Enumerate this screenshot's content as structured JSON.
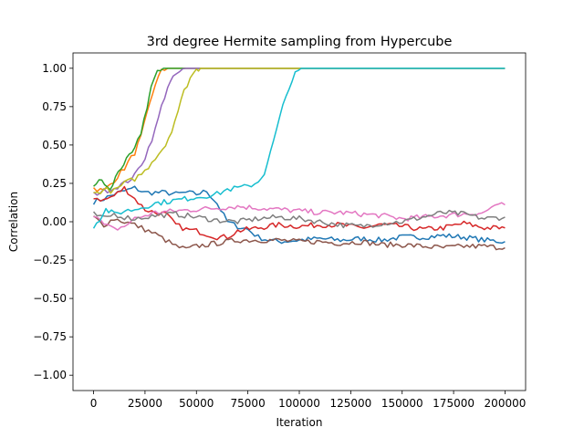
{
  "chart_data": {
    "type": "line",
    "title": "3rd degree Hermite sampling from Hypercube",
    "xlabel": "Iteration",
    "ylabel": "Correlation",
    "xlim": [
      -10000,
      210000
    ],
    "ylim": [
      -1.1,
      1.1
    ],
    "xticks": [
      0,
      25000,
      50000,
      75000,
      100000,
      125000,
      150000,
      175000,
      200000
    ],
    "xtick_labels": [
      "0",
      "25000",
      "50000",
      "75000",
      "100000",
      "125000",
      "150000",
      "175000",
      "200000"
    ],
    "yticks": [
      -1.0,
      -0.75,
      -0.5,
      -0.25,
      0.0,
      0.25,
      0.5,
      0.75,
      1.0
    ],
    "ytick_labels": [
      "−1.00",
      "−0.75",
      "−0.50",
      "−0.25",
      "0.00",
      "0.25",
      "0.50",
      "0.75",
      "1.00"
    ],
    "grid": false,
    "series": [
      {
        "color": "#1f77b4",
        "points": [
          [
            0,
            0.13
          ],
          [
            5000,
            0.15
          ],
          [
            10000,
            0.18
          ],
          [
            15000,
            0.2
          ],
          [
            20000,
            0.22
          ],
          [
            25000,
            0.19
          ],
          [
            30000,
            0.19
          ],
          [
            35000,
            0.19
          ],
          [
            40000,
            0.18
          ],
          [
            45000,
            0.19
          ],
          [
            50000,
            0.18
          ],
          [
            55000,
            0.2
          ],
          [
            60000,
            0.12
          ],
          [
            65000,
            0.0
          ],
          [
            70000,
            -0.03
          ],
          [
            75000,
            -0.05
          ],
          [
            80000,
            -0.1
          ],
          [
            85000,
            -0.12
          ],
          [
            90000,
            -0.13
          ],
          [
            100000,
            -0.12
          ],
          [
            110000,
            -0.11
          ],
          [
            120000,
            -0.12
          ],
          [
            130000,
            -0.11
          ],
          [
            140000,
            -0.12
          ],
          [
            150000,
            -0.1
          ],
          [
            160000,
            -0.1
          ],
          [
            170000,
            -0.09
          ],
          [
            180000,
            -0.1
          ],
          [
            190000,
            -0.12
          ],
          [
            200000,
            -0.13
          ]
        ]
      },
      {
        "color": "#ff7f0e",
        "points": [
          [
            0,
            0.22
          ],
          [
            5000,
            0.2
          ],
          [
            10000,
            0.27
          ],
          [
            15000,
            0.35
          ],
          [
            20000,
            0.45
          ],
          [
            23000,
            0.55
          ],
          [
            26000,
            0.7
          ],
          [
            30000,
            0.9
          ],
          [
            33000,
            0.98
          ],
          [
            36000,
            1.0
          ],
          [
            200000,
            1.0
          ]
        ]
      },
      {
        "color": "#2ca02c",
        "points": [
          [
            0,
            0.24
          ],
          [
            4000,
            0.27
          ],
          [
            8000,
            0.2
          ],
          [
            12000,
            0.33
          ],
          [
            16000,
            0.4
          ],
          [
            20000,
            0.47
          ],
          [
            23000,
            0.58
          ],
          [
            26000,
            0.75
          ],
          [
            28000,
            0.88
          ],
          [
            31000,
            0.97
          ],
          [
            34000,
            1.0
          ],
          [
            200000,
            1.0
          ]
        ]
      },
      {
        "color": "#d62728",
        "points": [
          [
            0,
            0.16
          ],
          [
            5000,
            0.14
          ],
          [
            10000,
            0.17
          ],
          [
            15000,
            0.22
          ],
          [
            20000,
            0.15
          ],
          [
            25000,
            0.08
          ],
          [
            30000,
            0.06
          ],
          [
            35000,
            0.05
          ],
          [
            40000,
            -0.02
          ],
          [
            45000,
            -0.05
          ],
          [
            50000,
            -0.06
          ],
          [
            55000,
            -0.08
          ],
          [
            60000,
            -0.1
          ],
          [
            65000,
            -0.1
          ],
          [
            70000,
            -0.06
          ],
          [
            80000,
            -0.04
          ],
          [
            90000,
            -0.02
          ],
          [
            100000,
            -0.03
          ],
          [
            110000,
            -0.02
          ],
          [
            120000,
            -0.02
          ],
          [
            130000,
            -0.04
          ],
          [
            140000,
            -0.02
          ],
          [
            150000,
            -0.03
          ],
          [
            160000,
            -0.05
          ],
          [
            170000,
            -0.04
          ],
          [
            180000,
            -0.01
          ],
          [
            190000,
            -0.04
          ],
          [
            200000,
            -0.04
          ]
        ]
      },
      {
        "color": "#9467bd",
        "points": [
          [
            0,
            0.18
          ],
          [
            5000,
            0.2
          ],
          [
            10000,
            0.22
          ],
          [
            15000,
            0.25
          ],
          [
            20000,
            0.3
          ],
          [
            25000,
            0.42
          ],
          [
            30000,
            0.6
          ],
          [
            33000,
            0.75
          ],
          [
            36000,
            0.88
          ],
          [
            40000,
            0.96
          ],
          [
            45000,
            1.0
          ],
          [
            200000,
            1.0
          ]
        ]
      },
      {
        "color": "#8c564b",
        "points": [
          [
            0,
            0.03
          ],
          [
            5000,
            -0.02
          ],
          [
            10000,
            0.02
          ],
          [
            15000,
            0.0
          ],
          [
            20000,
            -0.02
          ],
          [
            25000,
            -0.05
          ],
          [
            30000,
            -0.08
          ],
          [
            35000,
            -0.12
          ],
          [
            40000,
            -0.16
          ],
          [
            45000,
            -0.18
          ],
          [
            50000,
            -0.16
          ],
          [
            60000,
            -0.14
          ],
          [
            70000,
            -0.12
          ],
          [
            80000,
            -0.12
          ],
          [
            90000,
            -0.12
          ],
          [
            100000,
            -0.13
          ],
          [
            110000,
            -0.13
          ],
          [
            120000,
            -0.14
          ],
          [
            130000,
            -0.13
          ],
          [
            140000,
            -0.15
          ],
          [
            150000,
            -0.15
          ],
          [
            160000,
            -0.16
          ],
          [
            170000,
            -0.17
          ],
          [
            180000,
            -0.16
          ],
          [
            190000,
            -0.16
          ],
          [
            200000,
            -0.17
          ]
        ]
      },
      {
        "color": "#e377c2",
        "points": [
          [
            0,
            0.05
          ],
          [
            5000,
            -0.02
          ],
          [
            10000,
            -0.05
          ],
          [
            15000,
            -0.03
          ],
          [
            20000,
            0.02
          ],
          [
            25000,
            0.04
          ],
          [
            30000,
            0.06
          ],
          [
            40000,
            0.07
          ],
          [
            50000,
            0.08
          ],
          [
            60000,
            0.09
          ],
          [
            70000,
            0.1
          ],
          [
            80000,
            0.09
          ],
          [
            90000,
            0.08
          ],
          [
            100000,
            0.07
          ],
          [
            110000,
            0.06
          ],
          [
            120000,
            0.06
          ],
          [
            130000,
            0.05
          ],
          [
            140000,
            0.04
          ],
          [
            150000,
            0.02
          ],
          [
            160000,
            0.03
          ],
          [
            170000,
            0.04
          ],
          [
            180000,
            0.05
          ],
          [
            190000,
            0.06
          ],
          [
            195000,
            0.11
          ],
          [
            200000,
            0.11
          ]
        ]
      },
      {
        "color": "#7f7f7f",
        "points": [
          [
            0,
            0.05
          ],
          [
            5000,
            0.02
          ],
          [
            10000,
            0.05
          ],
          [
            15000,
            0.03
          ],
          [
            20000,
            0.02
          ],
          [
            25000,
            0.03
          ],
          [
            30000,
            0.04
          ],
          [
            40000,
            0.05
          ],
          [
            50000,
            0.03
          ],
          [
            60000,
            0.01
          ],
          [
            70000,
            0.0
          ],
          [
            80000,
            0.02
          ],
          [
            90000,
            0.03
          ],
          [
            100000,
            0.02
          ],
          [
            110000,
            0.0
          ],
          [
            120000,
            -0.02
          ],
          [
            130000,
            -0.03
          ],
          [
            140000,
            -0.01
          ],
          [
            150000,
            0.0
          ],
          [
            160000,
            0.03
          ],
          [
            170000,
            0.06
          ],
          [
            180000,
            0.05
          ],
          [
            190000,
            0.02
          ],
          [
            200000,
            0.03
          ]
        ]
      },
      {
        "color": "#bcbd22",
        "points": [
          [
            0,
            0.18
          ],
          [
            5000,
            0.21
          ],
          [
            10000,
            0.2
          ],
          [
            15000,
            0.25
          ],
          [
            20000,
            0.28
          ],
          [
            25000,
            0.33
          ],
          [
            30000,
            0.42
          ],
          [
            35000,
            0.5
          ],
          [
            38000,
            0.6
          ],
          [
            41000,
            0.72
          ],
          [
            44000,
            0.85
          ],
          [
            47000,
            0.94
          ],
          [
            50000,
            0.99
          ],
          [
            52000,
            1.0
          ],
          [
            200000,
            1.0
          ]
        ]
      },
      {
        "color": "#17becf",
        "points": [
          [
            0,
            -0.03
          ],
          [
            3000,
            0.02
          ],
          [
            6000,
            0.08
          ],
          [
            10000,
            0.05
          ],
          [
            15000,
            0.07
          ],
          [
            20000,
            0.08
          ],
          [
            25000,
            0.1
          ],
          [
            30000,
            0.12
          ],
          [
            40000,
            0.14
          ],
          [
            50000,
            0.16
          ],
          [
            55000,
            0.17
          ],
          [
            60000,
            0.18
          ],
          [
            65000,
            0.21
          ],
          [
            70000,
            0.22
          ],
          [
            75000,
            0.23
          ],
          [
            80000,
            0.26
          ],
          [
            83000,
            0.32
          ],
          [
            86000,
            0.45
          ],
          [
            89000,
            0.6
          ],
          [
            92000,
            0.75
          ],
          [
            95000,
            0.88
          ],
          [
            98000,
            0.96
          ],
          [
            101000,
            1.0
          ],
          [
            200000,
            1.0
          ]
        ]
      }
    ]
  }
}
